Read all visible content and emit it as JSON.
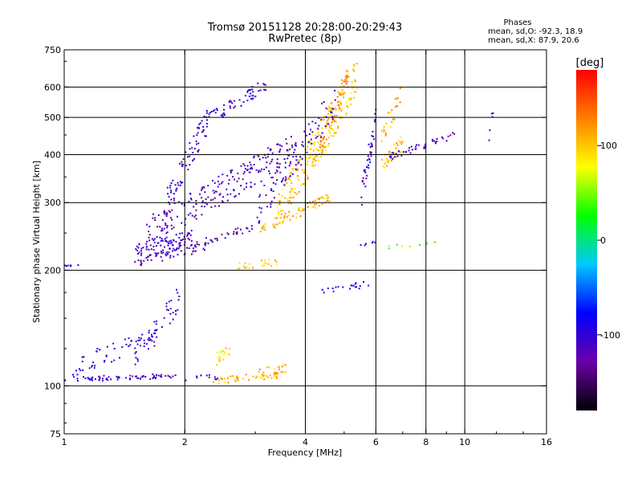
{
  "header": {
    "title_line1": "Tromsø 20151128 20:28:00-20:29:43",
    "title_line2": "RwPretec (8p)"
  },
  "stats": {
    "heading": "Phases",
    "line_o": "mean, sd,O: -92.3, 18.9",
    "line_x": "mean, sd,X:  87.9, 20.6"
  },
  "chart_data": {
    "type": "scatter",
    "xlabel": "Frequency [MHz]",
    "ylabel": "Stationary phase Virtual Height [km]",
    "x_scale": "log",
    "y_scale": "log",
    "xlim": [
      1,
      16
    ],
    "ylim": [
      75,
      750
    ],
    "x_ticks": [
      1,
      2,
      4,
      6,
      8,
      10,
      16
    ],
    "x_tick_labels": [
      "1",
      "2",
      "4",
      "6",
      "8",
      "10",
      "16"
    ],
    "y_ticks": [
      75,
      100,
      200,
      300,
      400,
      500,
      600,
      750
    ],
    "y_tick_labels": [
      "75",
      "100",
      "200",
      "300",
      "400",
      "500",
      "600",
      "750"
    ],
    "x_gridlines": [
      2,
      4,
      6,
      8,
      10
    ],
    "y_gridlines": [
      100,
      200,
      300,
      400,
      500,
      600
    ],
    "grid": true,
    "colorbar": {
      "label": "[deg]",
      "range": [
        -180,
        180
      ],
      "ticks": [
        100,
        0,
        -100
      ],
      "tick_labels": [
        "100",
        "0",
        "-100"
      ],
      "colors": [
        "#000000",
        "#6a00a8",
        "#0000ff",
        "#00c8ff",
        "#00ff00",
        "#ffff00",
        "#ff8000",
        "#ff0000"
      ]
    },
    "series": [
      {
        "traces": [
          {
            "f0": 1.0,
            "f1": 1.9,
            "h0": 104,
            "h1": 106,
            "phase": -110,
            "n": 70,
            "spread": 0.015
          },
          {
            "f0": 1.05,
            "f1": 1.7,
            "h0": 112,
            "h1": 135,
            "phase": -100,
            "n": 55,
            "spread": 0.06
          },
          {
            "f0": 1.5,
            "f1": 1.95,
            "h0": 120,
            "h1": 170,
            "phase": -105,
            "n": 45,
            "spread": 0.08
          },
          {
            "f0": 2.0,
            "f1": 2.5,
            "h0": 104,
            "h1": 106,
            "phase": -100,
            "n": 12,
            "spread": 0.02
          },
          {
            "f0": 2.35,
            "f1": 3.5,
            "h0": 103,
            "h1": 107,
            "phase": 105,
            "n": 50,
            "spread": 0.02
          },
          {
            "f0": 2.4,
            "f1": 2.6,
            "h0": 118,
            "h1": 125,
            "phase": 95,
            "n": 18,
            "spread": 0.04
          },
          {
            "f0": 3.0,
            "f1": 3.8,
            "h0": 108,
            "h1": 112,
            "phase": 110,
            "n": 20,
            "spread": 0.03
          },
          {
            "f0": 1.0,
            "f1": 1.1,
            "h0": 205,
            "h1": 207,
            "phase": -95,
            "n": 6,
            "spread": 0.01
          },
          {
            "f0": 1.5,
            "f1": 2.1,
            "h0": 225,
            "h1": 245,
            "phase": -110,
            "n": 70,
            "spread": 0.04
          },
          {
            "f0": 1.5,
            "f1": 2.3,
            "h0": 210,
            "h1": 230,
            "phase": -115,
            "n": 40,
            "spread": 0.03
          },
          {
            "f0": 1.6,
            "f1": 3.0,
            "h0": 215,
            "h1": 260,
            "phase": -120,
            "n": 60,
            "spread": 0.02
          },
          {
            "f0": 1.6,
            "f1": 3.8,
            "h0": 250,
            "h1": 420,
            "phase": -115,
            "n": 220,
            "spread": 0.09
          },
          {
            "f0": 1.8,
            "f1": 2.3,
            "h0": 300,
            "h1": 500,
            "phase": -110,
            "n": 70,
            "spread": 0.08
          },
          {
            "f0": 2.2,
            "f1": 3.2,
            "h0": 480,
            "h1": 610,
            "phase": -105,
            "n": 60,
            "spread": 0.04
          },
          {
            "f0": 3.0,
            "f1": 4.6,
            "h0": 250,
            "h1": 310,
            "phase": 110,
            "n": 70,
            "spread": 0.03
          },
          {
            "f0": 3.4,
            "f1": 5.4,
            "h0": 280,
            "h1": 640,
            "phase": 100,
            "n": 230,
            "spread": 0.12
          },
          {
            "f0": 4.3,
            "f1": 5.1,
            "h0": 400,
            "h1": 640,
            "phase": 120,
            "n": 60,
            "spread": 0.07
          },
          {
            "f0": 5.5,
            "f1": 6.0,
            "h0": 300,
            "h1": 500,
            "phase": -105,
            "n": 40,
            "spread": 0.08
          },
          {
            "f0": 3.0,
            "f1": 4.8,
            "h0": 280,
            "h1": 560,
            "phase": -110,
            "n": 90,
            "spread": 0.1
          },
          {
            "f0": 2.7,
            "f1": 3.4,
            "h0": 205,
            "h1": 210,
            "phase": 100,
            "n": 22,
            "spread": 0.02
          },
          {
            "f0": 4.4,
            "f1": 5.8,
            "h0": 178,
            "h1": 184,
            "phase": -100,
            "n": 20,
            "spread": 0.02
          },
          {
            "f0": 5.5,
            "f1": 6.0,
            "h0": 232,
            "h1": 236,
            "phase": -100,
            "n": 6,
            "spread": 0.01
          },
          {
            "f0": 6.2,
            "f1": 7.0,
            "h0": 380,
            "h1": 430,
            "phase": 105,
            "n": 40,
            "spread": 0.05
          },
          {
            "f0": 6.2,
            "f1": 6.9,
            "h0": 450,
            "h1": 560,
            "phase": 110,
            "n": 25,
            "spread": 0.07
          },
          {
            "f0": 6.5,
            "f1": 9.5,
            "h0": 395,
            "h1": 450,
            "phase": -110,
            "n": 45,
            "spread": 0.02
          },
          {
            "f0": 6.4,
            "f1": 8.8,
            "h0": 230,
            "h1": 236,
            "phase": 40,
            "n": 10,
            "spread": 0.01
          },
          {
            "f0": 11.5,
            "f1": 11.8,
            "h0": 450,
            "h1": 540,
            "phase": -110,
            "n": 5,
            "spread": 0.05
          }
        ]
      }
    ]
  }
}
